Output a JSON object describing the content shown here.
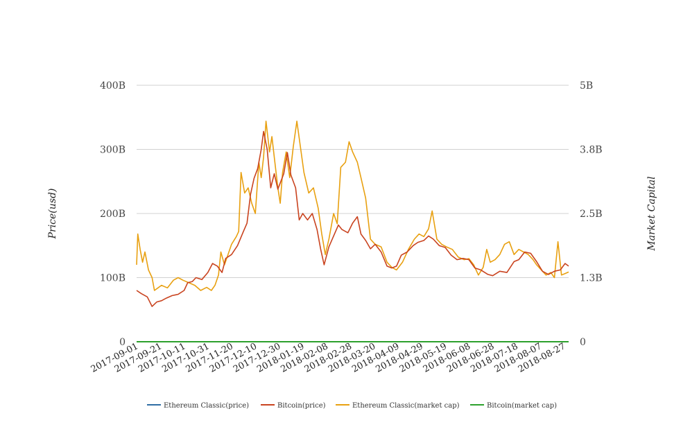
{
  "chart_data": {
    "type": "line",
    "x_tick_labels": [
      "2017-09-01",
      "2017-09-21",
      "2017-10-11",
      "2017-10-31",
      "2017-11-20",
      "2017-12-10",
      "2017-12-30",
      "2018-01-19",
      "2018-02-08",
      "2018-02-28",
      "2018-03-20",
      "2018-04-09",
      "2018-04-29",
      "2018-05-19",
      "2018-06-08",
      "2018-06-28",
      "2018-07-18",
      "2018-08-07",
      "2018-08-27"
    ],
    "y_left": {
      "label": "Price(usd)",
      "ticks": [
        "0",
        "100B",
        "200B",
        "300B",
        "400B"
      ],
      "range": [
        0,
        400000000000
      ]
    },
    "y_right": {
      "label": "Market Capital",
      "ticks": [
        "0",
        "1.3B",
        "2.5B",
        "3.8B",
        "5B"
      ],
      "range": [
        0,
        5000000000
      ]
    },
    "grid": "horizontal",
    "legend_position": "bottom",
    "series": [
      {
        "name": "Ethereum Classic(price)",
        "color": "#2e6da4",
        "axis": "left",
        "points": [
          [
            "2017-09-01",
            0
          ],
          [
            "2018-08-31",
            0
          ]
        ]
      },
      {
        "name": "Bitcoin(price)",
        "color": "#c9431f",
        "axis": "left",
        "points": [
          [
            "2017-09-01",
            80000000000
          ],
          [
            "2017-09-05",
            75000000000
          ],
          [
            "2017-09-10",
            70000000000
          ],
          [
            "2017-09-14",
            55000000000
          ],
          [
            "2017-09-18",
            62000000000
          ],
          [
            "2017-09-22",
            64000000000
          ],
          [
            "2017-09-26",
            68000000000
          ],
          [
            "2017-10-01",
            72000000000
          ],
          [
            "2017-10-06",
            74000000000
          ],
          [
            "2017-10-11",
            80000000000
          ],
          [
            "2017-10-14",
            92000000000
          ],
          [
            "2017-10-18",
            94000000000
          ],
          [
            "2017-10-21",
            100000000000
          ],
          [
            "2017-10-26",
            97000000000
          ],
          [
            "2017-10-31",
            108000000000
          ],
          [
            "2017-11-04",
            122000000000
          ],
          [
            "2017-11-08",
            118000000000
          ],
          [
            "2017-11-12",
            108000000000
          ],
          [
            "2017-11-15",
            130000000000
          ],
          [
            "2017-11-20",
            136000000000
          ],
          [
            "2017-11-25",
            150000000000
          ],
          [
            "2017-11-30",
            172000000000
          ],
          [
            "2017-12-03",
            185000000000
          ],
          [
            "2017-12-06",
            230000000000
          ],
          [
            "2017-12-09",
            255000000000
          ],
          [
            "2017-12-12",
            270000000000
          ],
          [
            "2017-12-15",
            300000000000
          ],
          [
            "2017-12-17",
            328000000000
          ],
          [
            "2017-12-20",
            300000000000
          ],
          [
            "2017-12-23",
            240000000000
          ],
          [
            "2017-12-26",
            262000000000
          ],
          [
            "2017-12-29",
            238000000000
          ],
          [
            "2018-01-03",
            262000000000
          ],
          [
            "2018-01-06",
            295000000000
          ],
          [
            "2018-01-09",
            260000000000
          ],
          [
            "2018-01-13",
            240000000000
          ],
          [
            "2018-01-16",
            190000000000
          ],
          [
            "2018-01-19",
            200000000000
          ],
          [
            "2018-01-23",
            190000000000
          ],
          [
            "2018-01-27",
            200000000000
          ],
          [
            "2018-01-31",
            175000000000
          ],
          [
            "2018-02-03",
            145000000000
          ],
          [
            "2018-02-06",
            120000000000
          ],
          [
            "2018-02-10",
            148000000000
          ],
          [
            "2018-02-14",
            165000000000
          ],
          [
            "2018-02-18",
            182000000000
          ],
          [
            "2018-02-21",
            175000000000
          ],
          [
            "2018-02-26",
            170000000000
          ],
          [
            "2018-03-02",
            185000000000
          ],
          [
            "2018-03-06",
            195000000000
          ],
          [
            "2018-03-09",
            168000000000
          ],
          [
            "2018-03-13",
            158000000000
          ],
          [
            "2018-03-17",
            145000000000
          ],
          [
            "2018-03-21",
            152000000000
          ],
          [
            "2018-03-26",
            140000000000
          ],
          [
            "2018-03-31",
            118000000000
          ],
          [
            "2018-04-04",
            115000000000
          ],
          [
            "2018-04-08",
            118000000000
          ],
          [
            "2018-04-12",
            135000000000
          ],
          [
            "2018-04-17",
            140000000000
          ],
          [
            "2018-04-22",
            150000000000
          ],
          [
            "2018-04-26",
            155000000000
          ],
          [
            "2018-05-01",
            158000000000
          ],
          [
            "2018-05-05",
            165000000000
          ],
          [
            "2018-05-09",
            160000000000
          ],
          [
            "2018-05-14",
            150000000000
          ],
          [
            "2018-05-19",
            147000000000
          ],
          [
            "2018-05-24",
            135000000000
          ],
          [
            "2018-05-29",
            128000000000
          ],
          [
            "2018-06-03",
            130000000000
          ],
          [
            "2018-06-08",
            128000000000
          ],
          [
            "2018-06-13",
            115000000000
          ],
          [
            "2018-06-18",
            112000000000
          ],
          [
            "2018-06-24",
            105000000000
          ],
          [
            "2018-06-28",
            103000000000
          ],
          [
            "2018-07-04",
            110000000000
          ],
          [
            "2018-07-10",
            108000000000
          ],
          [
            "2018-07-16",
            125000000000
          ],
          [
            "2018-07-20",
            128000000000
          ],
          [
            "2018-07-25",
            140000000000
          ],
          [
            "2018-07-30",
            138000000000
          ],
          [
            "2018-08-04",
            125000000000
          ],
          [
            "2018-08-09",
            110000000000
          ],
          [
            "2018-08-14",
            105000000000
          ],
          [
            "2018-08-19",
            110000000000
          ],
          [
            "2018-08-24",
            112000000000
          ],
          [
            "2018-08-28",
            122000000000
          ],
          [
            "2018-08-31",
            118000000000
          ]
        ]
      },
      {
        "name": "Ethereum Classic(market cap)",
        "color": "#e8a010",
        "axis": "right",
        "points": [
          [
            "2017-09-01",
            1500000000
          ],
          [
            "2017-09-02",
            2100000000
          ],
          [
            "2017-09-04",
            1800000000
          ],
          [
            "2017-09-06",
            1550000000
          ],
          [
            "2017-09-08",
            1750000000
          ],
          [
            "2017-09-11",
            1400000000
          ],
          [
            "2017-09-14",
            1250000000
          ],
          [
            "2017-09-16",
            1000000000
          ],
          [
            "2017-09-19",
            1050000000
          ],
          [
            "2017-09-22",
            1100000000
          ],
          [
            "2017-09-27",
            1050000000
          ],
          [
            "2017-10-02",
            1200000000
          ],
          [
            "2017-10-06",
            1250000000
          ],
          [
            "2017-10-10",
            1200000000
          ],
          [
            "2017-10-15",
            1150000000
          ],
          [
            "2017-10-20",
            1100000000
          ],
          [
            "2017-10-25",
            1000000000
          ],
          [
            "2017-10-30",
            1060000000
          ],
          [
            "2017-11-03",
            1000000000
          ],
          [
            "2017-11-06",
            1100000000
          ],
          [
            "2017-11-09",
            1300000000
          ],
          [
            "2017-11-11",
            1750000000
          ],
          [
            "2017-11-14",
            1500000000
          ],
          [
            "2017-11-17",
            1700000000
          ],
          [
            "2017-11-20",
            1900000000
          ],
          [
            "2017-11-24",
            2050000000
          ],
          [
            "2017-11-26",
            2150000000
          ],
          [
            "2017-11-28",
            3300000000
          ],
          [
            "2017-12-01",
            2900000000
          ],
          [
            "2017-12-04",
            3000000000
          ],
          [
            "2017-12-07",
            2700000000
          ],
          [
            "2017-12-10",
            2500000000
          ],
          [
            "2017-12-13",
            3500000000
          ],
          [
            "2017-12-15",
            3200000000
          ],
          [
            "2017-12-17",
            3600000000
          ],
          [
            "2017-12-19",
            4300000000
          ],
          [
            "2017-12-22",
            3700000000
          ],
          [
            "2017-12-24",
            4000000000
          ],
          [
            "2017-12-26",
            3600000000
          ],
          [
            "2017-12-29",
            3000000000
          ],
          [
            "2017-12-31",
            2700000000
          ],
          [
            "2018-01-02",
            3300000000
          ],
          [
            "2018-01-05",
            3700000000
          ],
          [
            "2018-01-08",
            3200000000
          ],
          [
            "2018-01-11",
            3800000000
          ],
          [
            "2018-01-14",
            4300000000
          ],
          [
            "2018-01-17",
            3800000000
          ],
          [
            "2018-01-20",
            3300000000
          ],
          [
            "2018-01-24",
            2900000000
          ],
          [
            "2018-01-28",
            3000000000
          ],
          [
            "2018-02-01",
            2600000000
          ],
          [
            "2018-02-04",
            2100000000
          ],
          [
            "2018-02-07",
            1700000000
          ],
          [
            "2018-02-10",
            2000000000
          ],
          [
            "2018-02-14",
            2500000000
          ],
          [
            "2018-02-17",
            2300000000
          ],
          [
            "2018-02-20",
            3400000000
          ],
          [
            "2018-02-24",
            3500000000
          ],
          [
            "2018-02-27",
            3900000000
          ],
          [
            "2018-03-02",
            3700000000
          ],
          [
            "2018-03-06",
            3500000000
          ],
          [
            "2018-03-09",
            3200000000
          ],
          [
            "2018-03-13",
            2800000000
          ],
          [
            "2018-03-17",
            2000000000
          ],
          [
            "2018-03-21",
            1900000000
          ],
          [
            "2018-03-26",
            1850000000
          ],
          [
            "2018-03-31",
            1550000000
          ],
          [
            "2018-04-04",
            1450000000
          ],
          [
            "2018-04-08",
            1400000000
          ],
          [
            "2018-04-13",
            1550000000
          ],
          [
            "2018-04-18",
            1800000000
          ],
          [
            "2018-04-23",
            2000000000
          ],
          [
            "2018-04-27",
            2100000000
          ],
          [
            "2018-05-01",
            2050000000
          ],
          [
            "2018-05-05",
            2200000000
          ],
          [
            "2018-05-08",
            2550000000
          ],
          [
            "2018-05-12",
            2000000000
          ],
          [
            "2018-05-16",
            1900000000
          ],
          [
            "2018-05-20",
            1850000000
          ],
          [
            "2018-05-25",
            1800000000
          ],
          [
            "2018-05-30",
            1650000000
          ],
          [
            "2018-06-04",
            1600000000
          ],
          [
            "2018-06-08",
            1620000000
          ],
          [
            "2018-06-12",
            1500000000
          ],
          [
            "2018-06-16",
            1300000000
          ],
          [
            "2018-06-20",
            1450000000
          ],
          [
            "2018-06-23",
            1800000000
          ],
          [
            "2018-06-26",
            1550000000
          ],
          [
            "2018-06-30",
            1600000000
          ],
          [
            "2018-07-04",
            1700000000
          ],
          [
            "2018-07-08",
            1900000000
          ],
          [
            "2018-07-12",
            1950000000
          ],
          [
            "2018-07-16",
            1700000000
          ],
          [
            "2018-07-20",
            1800000000
          ],
          [
            "2018-07-24",
            1750000000
          ],
          [
            "2018-07-28",
            1700000000
          ],
          [
            "2018-08-01",
            1600000000
          ],
          [
            "2018-08-04",
            1500000000
          ],
          [
            "2018-08-08",
            1400000000
          ],
          [
            "2018-08-12",
            1300000000
          ],
          [
            "2018-08-16",
            1350000000
          ],
          [
            "2018-08-19",
            1250000000
          ],
          [
            "2018-08-22",
            1950000000
          ],
          [
            "2018-08-25",
            1300000000
          ],
          [
            "2018-08-28",
            1330000000
          ],
          [
            "2018-08-31",
            1360000000
          ]
        ]
      },
      {
        "name": "Bitcoin(market cap)",
        "color": "#2ca02c",
        "axis": "right",
        "points": [
          [
            "2017-09-01",
            0
          ],
          [
            "2018-08-31",
            0
          ]
        ]
      }
    ]
  }
}
